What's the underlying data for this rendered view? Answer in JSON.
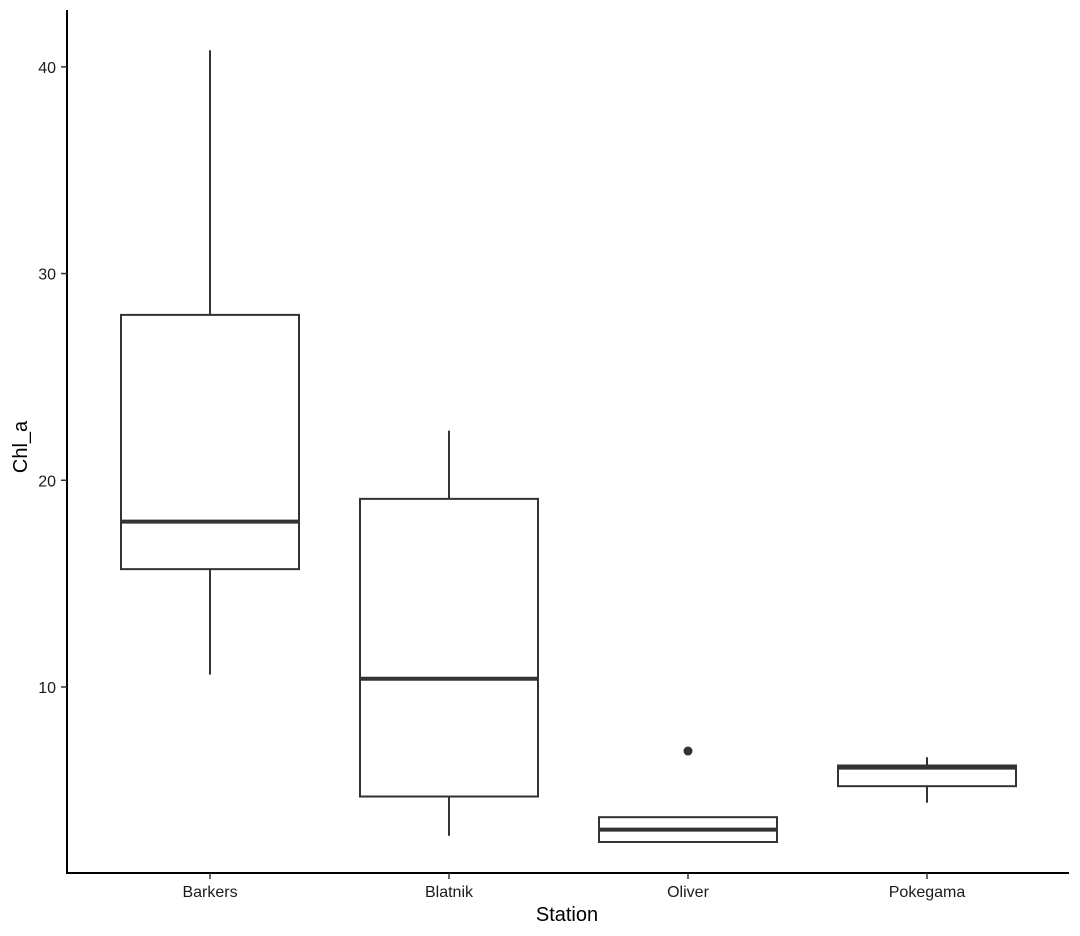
{
  "chart_data": {
    "type": "boxplot",
    "xlabel": "Station",
    "ylabel": "Chl_a",
    "categories": [
      "Barkers",
      "Blatnik",
      "Oliver",
      "Pokegama"
    ],
    "y_ticks": [
      10,
      20,
      30,
      40
    ],
    "ylim": [
      1.0,
      42.75
    ],
    "boxes": [
      {
        "category": "Barkers",
        "whisker_low": 10.6,
        "q1": 15.7,
        "median": 18.0,
        "q3": 28.0,
        "whisker_high": 40.8,
        "outliers": []
      },
      {
        "category": "Blatnik",
        "whisker_low": 2.8,
        "q1": 4.7,
        "median": 10.4,
        "q3": 19.1,
        "whisker_high": 22.4,
        "outliers": []
      },
      {
        "category": "Oliver",
        "whisker_low": 2.5,
        "q1": 2.5,
        "median": 3.1,
        "q3": 3.7,
        "whisker_high": 3.7,
        "outliers": [
          6.9
        ]
      },
      {
        "category": "Pokegama",
        "whisker_low": 4.4,
        "q1": 5.2,
        "median": 6.1,
        "q3": 6.2,
        "whisker_high": 6.6,
        "outliers": []
      }
    ],
    "grid": false,
    "legend": "none",
    "colors": {
      "box_stroke": "#333333",
      "box_fill": "#ffffff",
      "axis": "#000000"
    }
  }
}
